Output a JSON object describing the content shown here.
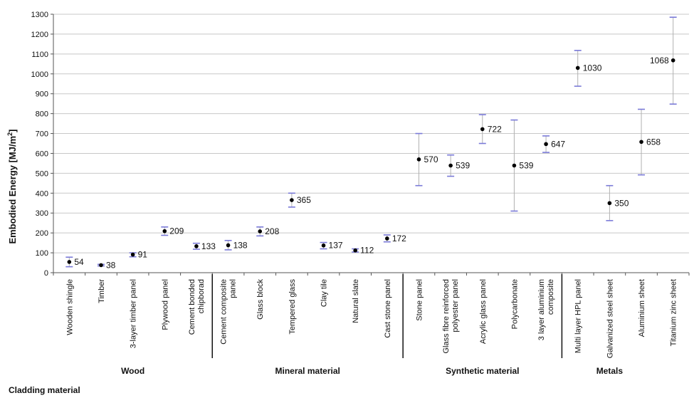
{
  "chart_data": {
    "type": "scatter",
    "ylabel": "Embodied Energy [MJ/m",
    "ylabel_sup": "2",
    "ylabel_end": "]",
    "xlabel": "Cladding material",
    "ylim": [
      0,
      1300
    ],
    "yticks": [
      "0",
      "100",
      "200",
      "300",
      "400",
      "500",
      "600",
      "700",
      "800",
      "900",
      "1000",
      "1100",
      "1200",
      "1300"
    ],
    "grid": true,
    "groups": [
      {
        "name": "Wood",
        "start": 0,
        "end": 4
      },
      {
        "name": "Mineral material",
        "start": 5,
        "end": 10
      },
      {
        "name": "Synthetic material",
        "start": 11,
        "end": 15
      },
      {
        "name": "Metals",
        "start": 16,
        "end": 18
      }
    ],
    "points": [
      {
        "category": "Wooden shingle",
        "value": 54,
        "low": 30,
        "high": 78,
        "label": "54"
      },
      {
        "category": "Timber",
        "value": 38,
        "low": 34,
        "high": 42,
        "label": "38"
      },
      {
        "category": "3-layer timber panel",
        "value": 91,
        "low": 80,
        "high": 100,
        "label": "91"
      },
      {
        "category": "Plywood panel",
        "value": 209,
        "low": 188,
        "high": 230,
        "label": "209"
      },
      {
        "category": "Cement bonded chipborad",
        "value": 133,
        "low": 118,
        "high": 148,
        "label": "133"
      },
      {
        "category": "Cement composite panel",
        "value": 138,
        "low": 115,
        "high": 162,
        "label": "138"
      },
      {
        "category": "Glass block",
        "value": 208,
        "low": 185,
        "high": 230,
        "label": "208"
      },
      {
        "category": "Tempered glass",
        "value": 365,
        "low": 330,
        "high": 400,
        "label": "365"
      },
      {
        "category": "Clay tile",
        "value": 137,
        "low": 120,
        "high": 152,
        "label": "137"
      },
      {
        "category": "Natural slate",
        "value": 112,
        "low": 104,
        "high": 120,
        "label": "112"
      },
      {
        "category": "Cast stone panel",
        "value": 172,
        "low": 155,
        "high": 190,
        "label": "172"
      },
      {
        "category": "Stone panel",
        "value": 570,
        "low": 438,
        "high": 700,
        "label": "570"
      },
      {
        "category": "Glass fibre reinforced polyester panel",
        "value": 539,
        "low": 485,
        "high": 592,
        "label": "539"
      },
      {
        "category": "Acrylic glass panel",
        "value": 722,
        "low": 650,
        "high": 795,
        "label": "722"
      },
      {
        "category": "Polycarbonate",
        "value": 539,
        "low": 310,
        "high": 768,
        "label": "539"
      },
      {
        "category": "3 layer aluminium composite",
        "value": 647,
        "low": 605,
        "high": 688,
        "label": "647"
      },
      {
        "category": "Multi layer HPL panel",
        "value": 1030,
        "low": 938,
        "high": 1118,
        "label": "1030"
      },
      {
        "category": "Galvanized steel sheet",
        "value": 350,
        "low": 262,
        "high": 438,
        "label": "350"
      },
      {
        "category": "Aluminium sheet",
        "value": 658,
        "low": 492,
        "high": 822,
        "label": "658"
      },
      {
        "category": "Titanium zinc sheet",
        "value": 1068,
        "low": 848,
        "high": 1285,
        "label": "1068"
      }
    ],
    "label_left_categories": [
      "Titanium zinc sheet"
    ],
    "category_lines": {
      "Cement bonded chipborad": [
        "Cement bonded",
        "chipborad"
      ],
      "Cement composite panel": [
        "Cement composite",
        "panel"
      ],
      "Glass fibre reinforced polyester panel": [
        "Glass fibre reinforced",
        "polyester panel"
      ],
      "3 layer aluminium composite": [
        "3 layer aluminium",
        "composite"
      ]
    },
    "colors": {
      "marker": "#000000",
      "error_bar": "#b0b0b0",
      "cap": "#7a7ad8",
      "grid": "#c8c8c8",
      "axis": "#555555"
    }
  }
}
